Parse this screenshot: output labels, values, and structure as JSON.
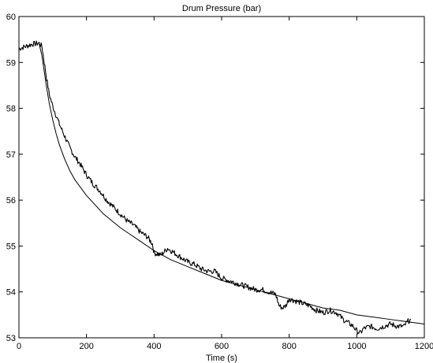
{
  "chart_data": {
    "type": "line",
    "title": "Drum Pressure (bar)",
    "xlabel": "Time (s)",
    "ylabel": "",
    "xlim": [
      0,
      1200
    ],
    "ylim": [
      53,
      60
    ],
    "xticks": [
      0,
      200,
      400,
      600,
      800,
      1000,
      1200
    ],
    "yticks": [
      53,
      54,
      55,
      56,
      57,
      58,
      59,
      60
    ],
    "grid": false,
    "legend": "none",
    "series": [
      {
        "color": "#000000",
        "style": "noisy",
        "x": [
          0,
          20,
          40,
          60,
          68,
          75,
          82,
          90,
          100,
          110,
          120,
          135,
          150,
          165,
          180,
          200,
          220,
          240,
          260,
          280,
          300,
          320,
          340,
          360,
          380,
          395,
          400,
          420,
          440,
          460,
          480,
          500,
          520,
          540,
          560,
          580,
          600,
          620,
          640,
          660,
          680,
          700,
          720,
          740,
          760,
          770,
          780,
          790,
          800,
          820,
          840,
          860,
          880,
          900,
          920,
          940,
          960,
          980,
          990,
          1000,
          1010,
          1020,
          1040,
          1060,
          1080,
          1100,
          1120,
          1140,
          1150,
          1160
        ],
        "y": [
          59.3,
          59.35,
          59.4,
          59.42,
          59.35,
          59.0,
          58.65,
          58.3,
          58.05,
          57.85,
          57.65,
          57.4,
          57.15,
          56.95,
          56.8,
          56.55,
          56.35,
          56.2,
          56.0,
          55.85,
          55.7,
          55.55,
          55.45,
          55.3,
          55.2,
          55.05,
          54.85,
          54.8,
          54.95,
          54.85,
          54.75,
          54.65,
          54.6,
          54.5,
          54.45,
          54.45,
          54.3,
          54.25,
          54.2,
          54.15,
          54.1,
          54.05,
          54.05,
          54.0,
          53.95,
          53.7,
          53.65,
          53.7,
          53.85,
          53.8,
          53.75,
          53.7,
          53.6,
          53.55,
          53.6,
          53.55,
          53.4,
          53.3,
          53.25,
          53.15,
          53.1,
          53.2,
          53.25,
          53.2,
          53.25,
          53.3,
          53.25,
          53.25,
          53.35,
          53.4
        ]
      },
      {
        "color": "#000000",
        "style": "smooth",
        "x": [
          60,
          68,
          75,
          82,
          90,
          100,
          110,
          120,
          135,
          150,
          165,
          180,
          200,
          225,
          250,
          275,
          300,
          330,
          360,
          400,
          450,
          500,
          550,
          600,
          650,
          700,
          750,
          800,
          850,
          900,
          950,
          1000,
          1050,
          1100,
          1150,
          1200
        ],
        "y": [
          59.4,
          59.15,
          58.8,
          58.45,
          58.1,
          57.75,
          57.45,
          57.2,
          56.9,
          56.65,
          56.45,
          56.3,
          56.1,
          55.9,
          55.7,
          55.55,
          55.4,
          55.25,
          55.1,
          54.9,
          54.7,
          54.55,
          54.4,
          54.25,
          54.15,
          54.05,
          53.95,
          53.85,
          53.75,
          53.65,
          53.6,
          53.5,
          53.45,
          53.4,
          53.35,
          53.3
        ]
      }
    ]
  }
}
